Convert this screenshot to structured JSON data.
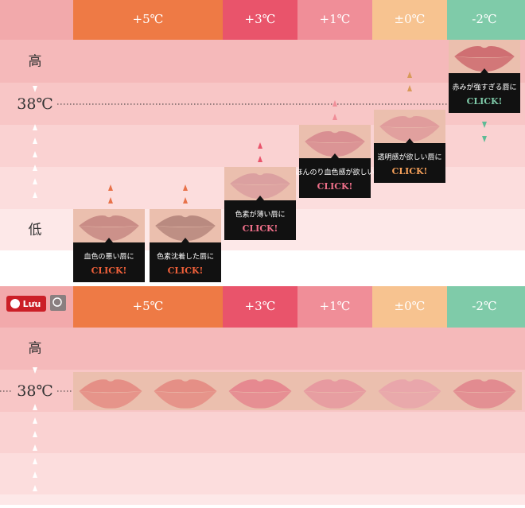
{
  "top": {
    "headers": [
      "+5℃",
      "+3℃",
      "+1℃",
      "±0℃",
      "-2℃"
    ],
    "row_labels": {
      "high": "高",
      "body_temp": "38℃",
      "low": "低"
    },
    "cards": [
      {
        "caption": "血色の悪い唇に",
        "action": "CLICK!"
      },
      {
        "caption": "色素沈着した唇に",
        "action": "CLICK!"
      },
      {
        "caption": "色素が薄い唇に",
        "action": "CLICK!"
      },
      {
        "caption": "ほんのり血色感が欲しい",
        "action": "CLICK!"
      },
      {
        "caption": "透明感が欲しい唇に",
        "action": "CLICK!"
      },
      {
        "caption": "赤みが強すぎる唇に",
        "action": "CLICK!"
      }
    ]
  },
  "bottom": {
    "pin_button": "Lưu",
    "headers": [
      "+5℃",
      "+3℃",
      "+1℃",
      "±0℃",
      "-2℃"
    ],
    "row_labels": {
      "high": "高",
      "body_temp": "38℃"
    }
  }
}
